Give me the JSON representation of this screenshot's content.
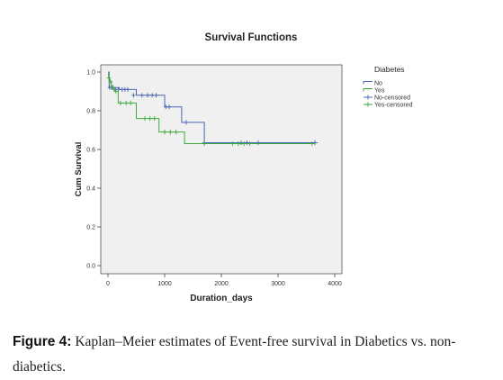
{
  "chart_data": {
    "type": "line",
    "title": "Survival Functions",
    "xlabel": "Duration_days",
    "ylabel": "Cum Survival",
    "xlim": [
      0,
      4000
    ],
    "ylim": [
      0.0,
      1.0
    ],
    "xticks": [
      0,
      1000,
      2000,
      3000,
      4000
    ],
    "yticks": [
      0.0,
      0.2,
      0.4,
      0.6,
      0.8,
      1.0
    ],
    "ytick_labels": [
      "0.0",
      "0.2",
      "0.4",
      "0.6",
      "0.8",
      "1.0"
    ],
    "grid": false,
    "plot_background": "#f0f0f0",
    "legend": {
      "title": "Diabetes",
      "position": "right",
      "entries": [
        "No",
        "Yes",
        "No-censored",
        "Yes-censored"
      ]
    },
    "series": [
      {
        "name": "No",
        "color": "#4a67b6",
        "step_x": [
          0,
          20,
          200,
          500,
          1000,
          1300,
          1700,
          3700
        ],
        "step_y": [
          1.0,
          0.92,
          0.91,
          0.88,
          0.82,
          0.74,
          0.635,
          0.635
        ],
        "censored_x": [
          30,
          60,
          90,
          130,
          180,
          250,
          300,
          350,
          450,
          600,
          700,
          780,
          850,
          1020,
          1080,
          1380,
          1700,
          2350,
          2450,
          2650,
          3650
        ],
        "censored_y": [
          0.92,
          0.92,
          0.92,
          0.91,
          0.91,
          0.91,
          0.91,
          0.91,
          0.88,
          0.88,
          0.88,
          0.88,
          0.88,
          0.82,
          0.82,
          0.74,
          0.635,
          0.635,
          0.635,
          0.635,
          0.635
        ]
      },
      {
        "name": "Yes",
        "color": "#3faa3f",
        "step_x": [
          0,
          10,
          30,
          60,
          110,
          180,
          500,
          900,
          1350,
          3650
        ],
        "step_y": [
          1.0,
          0.97,
          0.95,
          0.92,
          0.9,
          0.84,
          0.76,
          0.69,
          0.63,
          0.63
        ],
        "censored_x": [
          15,
          45,
          80,
          140,
          220,
          320,
          400,
          650,
          740,
          820,
          1000,
          1100,
          1200,
          1700,
          2200,
          2300,
          2400,
          2500,
          3600
        ],
        "censored_y": [
          0.97,
          0.95,
          0.92,
          0.9,
          0.84,
          0.84,
          0.84,
          0.76,
          0.76,
          0.76,
          0.69,
          0.69,
          0.69,
          0.63,
          0.63,
          0.63,
          0.63,
          0.63,
          0.63
        ]
      }
    ]
  },
  "caption": {
    "label": "Figure 4:",
    "text": " Kaplan–Meier estimates of Event-free survival in Diabetics vs. non-diabetics."
  }
}
